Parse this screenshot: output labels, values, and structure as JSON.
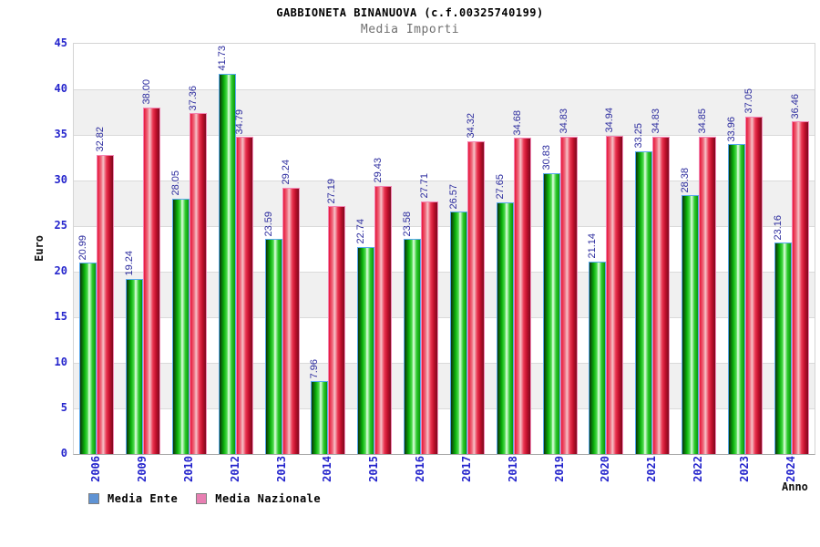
{
  "chart_data": {
    "type": "bar",
    "title": "GABBIONETA BINANUOVA (c.f.00325740199)",
    "subtitle": "Media Importi",
    "xlabel": "Anno",
    "ylabel": "Euro",
    "ylim": [
      0,
      45
    ],
    "ytick_step": 5,
    "ytick_labels": [
      "0",
      "5",
      "10",
      "15",
      "20",
      "25",
      "30",
      "35",
      "40",
      "45"
    ],
    "grid": "horizontal lines with alternating gray bands",
    "legend_position": "bottom-left",
    "value_label_decimals": 2,
    "categories": [
      "2006",
      "2009",
      "2010",
      "2012",
      "2013",
      "2014",
      "2015",
      "2016",
      "2017",
      "2018",
      "2019",
      "2020",
      "2021",
      "2022",
      "2023",
      "2024"
    ],
    "series": [
      {
        "name": "Media Ente",
        "legend_color": "#5f93d4",
        "bar_color": "#00c000",
        "bar_border_color": "#5aa9ee",
        "values": [
          20.99,
          19.24,
          28.05,
          41.73,
          23.59,
          7.96,
          22.74,
          23.58,
          26.57,
          27.65,
          30.83,
          21.14,
          33.25,
          28.38,
          33.96,
          23.16
        ]
      },
      {
        "name": "Media Nazionale",
        "legend_color": "#e87fb2",
        "bar_color": "#e6173a",
        "bar_border_color": "#f386b4",
        "values": [
          32.82,
          38.0,
          37.36,
          34.79,
          29.24,
          27.19,
          29.43,
          27.71,
          34.32,
          34.68,
          34.83,
          34.94,
          34.83,
          34.85,
          37.05,
          36.46
        ]
      }
    ],
    "colors": {
      "tick_label": "#2424cc",
      "value_label": "#2b2b9e",
      "subtitle": "#707070",
      "band": "#f0f0f0",
      "gridline": "#dadada",
      "plot_border": "#d4d4d4",
      "axis_line": "#a8a8a8"
    }
  }
}
